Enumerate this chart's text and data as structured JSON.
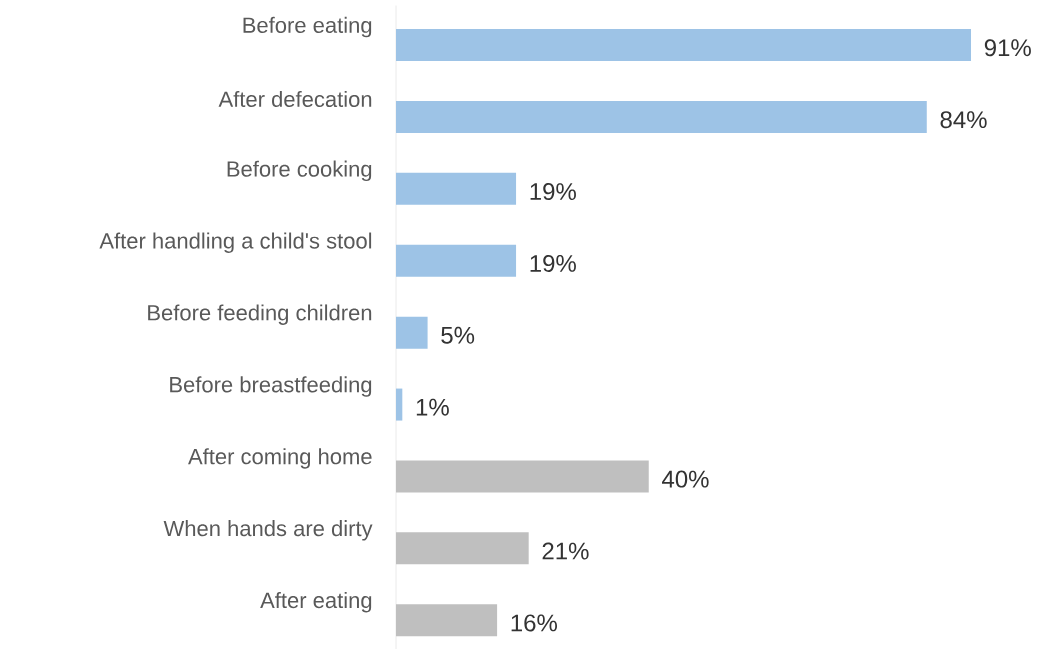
{
  "chart_data": {
    "type": "bar",
    "orientation": "horizontal",
    "categories": [
      "Before eating",
      "After defecation",
      "Before cooking",
      "After handling a child's stool",
      "Before feeding children",
      "Before breastfeeding",
      "After coming home",
      "When hands are dirty",
      "After eating"
    ],
    "values": [
      91,
      84,
      19,
      19,
      5,
      1,
      40,
      21,
      16
    ],
    "colors": [
      "#9dc3e6",
      "#9dc3e6",
      "#9dc3e6",
      "#9dc3e6",
      "#9dc3e6",
      "#9dc3e6",
      "#bfbfbf",
      "#bfbfbf",
      "#bfbfbf"
    ],
    "value_labels": [
      "91%",
      "84%",
      "19%",
      "19%",
      "5%",
      "1%",
      "40%",
      "21%",
      "16%"
    ]
  }
}
